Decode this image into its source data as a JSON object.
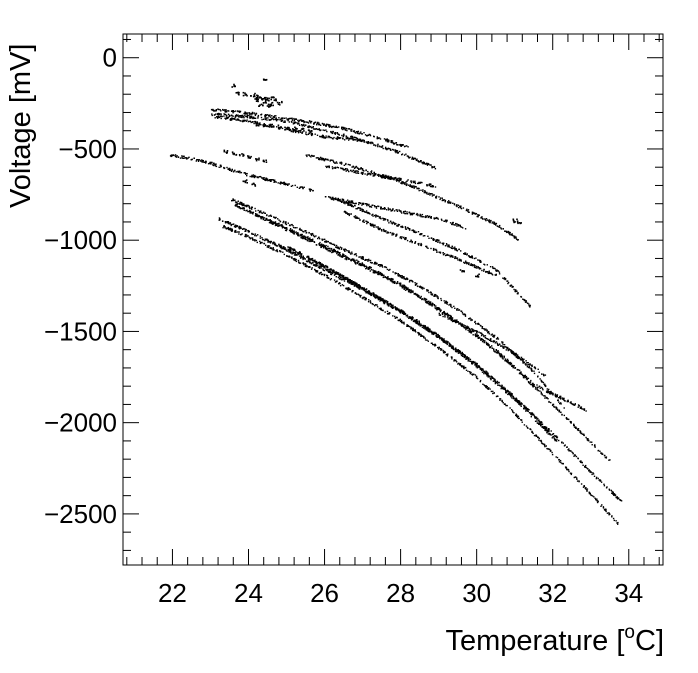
{
  "chart_data": {
    "type": "scatter",
    "title": "",
    "xlabel": "Temperature [",
    "xlabel_unit_sup": "o",
    "xlabel_unit": "C]",
    "ylabel": "Voltage [mV]",
    "xlim": [
      20.7,
      34.9
    ],
    "ylim": [
      -2780,
      130
    ],
    "grid": false,
    "legend": "none",
    "marker_color": "#000000",
    "x_ticks": [
      22,
      24,
      26,
      28,
      30,
      32,
      34
    ],
    "x_tick_labels": [
      "22",
      "24",
      "26",
      "28",
      "30",
      "32",
      "34"
    ],
    "y_ticks": [
      0,
      -500,
      -1000,
      -1500,
      -2000,
      -2500
    ],
    "y_tick_labels": [
      "0",
      "−500",
      "−1000",
      "−1500",
      "−2000",
      "−2500"
    ],
    "series": [
      {
        "x": [
          21.9,
          22.5,
          23.0,
          23.5,
          24.0,
          24.5,
          25.0,
          25.7
        ],
        "y": [
          -530,
          -550,
          -575,
          -610,
          -640,
          -665,
          -690,
          -725
        ]
      },
      {
        "x": [
          23.0,
          23.8,
          24.5,
          25.5,
          26.5,
          27.5,
          28.2
        ],
        "y": [
          -280,
          -295,
          -315,
          -345,
          -385,
          -440,
          -490
        ]
      },
      {
        "x": [
          23.0,
          24.0,
          25.0,
          26.0,
          27.0,
          28.0,
          28.9
        ],
        "y": [
          -305,
          -320,
          -345,
          -395,
          -450,
          -520,
          -600
        ]
      },
      {
        "x": [
          23.1,
          24.0,
          25.0,
          26.0,
          27.0
        ],
        "y": [
          -320,
          -345,
          -390,
          -430,
          -450
        ]
      },
      {
        "x": [
          25.5,
          26.5,
          27.5,
          28.5,
          29.5,
          30.5,
          31.1
        ],
        "y": [
          -530,
          -580,
          -640,
          -720,
          -810,
          -910,
          -995
        ]
      },
      {
        "x": [
          26.0,
          27.0,
          28.0,
          28.9
        ],
        "y": [
          -590,
          -630,
          -665,
          -700
        ]
      },
      {
        "x": [
          26.0,
          27.0,
          28.0,
          29.0,
          29.7
        ],
        "y": [
          -760,
          -800,
          -840,
          -880,
          -930
        ]
      },
      {
        "x": [
          26.3,
          27.5,
          28.5,
          29.5,
          30.5,
          31.4
        ],
        "y": [
          -770,
          -880,
          -960,
          -1050,
          -1160,
          -1360
        ]
      },
      {
        "x": [
          26.5,
          27.5,
          28.5,
          29.5,
          30.5
        ],
        "y": [
          -840,
          -940,
          -1020,
          -1100,
          -1190
        ]
      },
      {
        "x": [
          23.5,
          24.5,
          25.5,
          26.5,
          27.5,
          28.5,
          29.5,
          30.5,
          31.5,
          32.3
        ],
        "y": [
          -770,
          -860,
          -950,
          -1050,
          -1140,
          -1250,
          -1380,
          -1530,
          -1720,
          -1920
        ]
      },
      {
        "x": [
          23.6,
          24.5,
          25.5,
          26.5,
          27.5,
          28.5,
          29.5,
          30.5,
          31.5,
          32.9
        ],
        "y": [
          -800,
          -890,
          -990,
          -1090,
          -1190,
          -1310,
          -1450,
          -1600,
          -1790,
          -1930
        ]
      },
      {
        "x": [
          24.0,
          25.0,
          26.0,
          27.0,
          28.0,
          29.0,
          30.0,
          31.0,
          32.0,
          33.5
        ],
        "y": [
          -840,
          -930,
          -1030,
          -1130,
          -1240,
          -1370,
          -1520,
          -1700,
          -1900,
          -2210
        ]
      },
      {
        "x": [
          23.2,
          24.0,
          25.0,
          26.0,
          27.0,
          28.0,
          29.0,
          30.0,
          31.0,
          32.0,
          33.0,
          33.8
        ],
        "y": [
          -880,
          -950,
          -1050,
          -1160,
          -1270,
          -1390,
          -1530,
          -1680,
          -1860,
          -2060,
          -2270,
          -2430
        ]
      },
      {
        "x": [
          23.3,
          24.0,
          25.0,
          26.0,
          27.0,
          28.0,
          29.0,
          30.0,
          31.0,
          32.0,
          33.0,
          33.7
        ],
        "y": [
          -920,
          -980,
          -1080,
          -1190,
          -1310,
          -1440,
          -1590,
          -1750,
          -1950,
          -2170,
          -2390,
          -2550
        ]
      },
      {
        "x": [
          24.5,
          25.5,
          26.5,
          27.5,
          28.5,
          29.5,
          30.5,
          31.5,
          32.1
        ],
        "y": [
          -1000,
          -1090,
          -1200,
          -1320,
          -1450,
          -1600,
          -1770,
          -1960,
          -2100
        ]
      },
      {
        "x": [
          25.0,
          26.0,
          27.0,
          28.0,
          29.0,
          30.0,
          31.0,
          32.0
        ],
        "y": [
          -1030,
          -1140,
          -1260,
          -1390,
          -1530,
          -1690,
          -1870,
          -2080
        ]
      },
      {
        "x": [
          29.0,
          30.0,
          31.0,
          31.8
        ],
        "y": [
          -1400,
          -1500,
          -1620,
          -1740
        ]
      }
    ],
    "clusters": [
      {
        "x": [
          23.7,
          23.9,
          24.1,
          24.2,
          24.3,
          24.4,
          24.5,
          24.6,
          24.7,
          24.8,
          24.3,
          24.5,
          24.4,
          24.6,
          24.2
        ],
        "y": [
          -190,
          -195,
          -200,
          -210,
          -215,
          -220,
          -225,
          -220,
          -230,
          -245,
          -255,
          -260,
          -240,
          -250,
          -230
        ]
      },
      {
        "x": [
          24.2,
          24.4,
          24.6,
          24.8,
          25.0,
          25.2,
          25.4,
          25.6
        ],
        "y": [
          -360,
          -365,
          -370,
          -375,
          -380,
          -385,
          -390,
          -395
        ]
      },
      {
        "x": [
          23.4,
          23.6,
          23.8,
          24.0,
          24.2,
          24.4
        ],
        "y": [
          -510,
          -520,
          -530,
          -540,
          -555,
          -565
        ]
      },
      {
        "x": [
          24.4,
          23.6,
          23.9,
          24.1,
          30.0,
          29.6,
          31.0,
          31.1
        ],
        "y": [
          -115,
          -150,
          -675,
          -690,
          -1190,
          -1160,
          -890,
          -895
        ]
      }
    ]
  }
}
